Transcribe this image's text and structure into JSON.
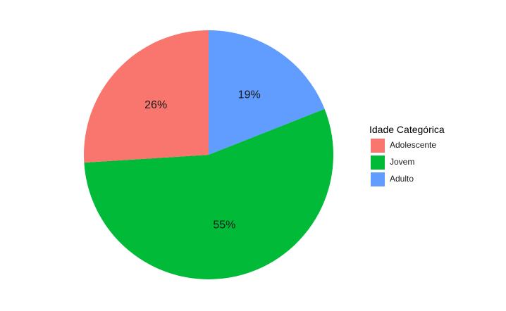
{
  "chart_data": {
    "type": "pie",
    "title": "",
    "legend": {
      "title": "Idade Categórica",
      "position": "right"
    },
    "slices": [
      {
        "name": "Adolescente",
        "value": 26,
        "label": "26%",
        "color": "#F8766D"
      },
      {
        "name": "Jovem",
        "value": 55,
        "label": "55%",
        "color": "#00BA38"
      },
      {
        "name": "Adulto",
        "value": 19,
        "label": "19%",
        "color": "#619CFF"
      }
    ]
  }
}
